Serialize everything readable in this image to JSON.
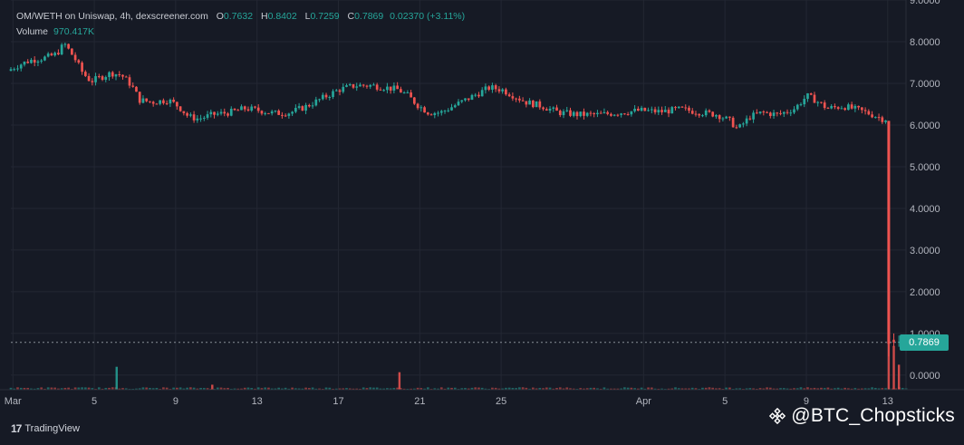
{
  "header": {
    "pair": "OM/WETH on Uniswap, 4h, dexscreener.com",
    "open_label": "O",
    "open": "0.7632",
    "high_label": "H",
    "high": "0.8402",
    "low_label": "L",
    "low": "0.7259",
    "close_label": "C",
    "close": "0.7869",
    "change": "0.02370 (+3.11%)",
    "volume_label": "Volume",
    "volume": "970.417K"
  },
  "last_price": "0.7869",
  "brand": "TradingView",
  "watermark": "@BTC_Chopsticks",
  "colors": {
    "background": "#161a25",
    "up": "#26a69a",
    "down": "#ef5350",
    "grid": "#232733",
    "axis_text": "#b2b5be"
  },
  "chart_data": {
    "type": "candlestick",
    "timeframe": "4h",
    "y_ticks": [
      "0.0000",
      "1.0000",
      "2.0000",
      "3.0000",
      "4.0000",
      "5.0000",
      "6.0000",
      "7.0000",
      "8.0000",
      "9.0000"
    ],
    "ylim": [
      -0.35,
      9.0
    ],
    "x_ticks": [
      {
        "label": "Mar",
        "day": 1
      },
      {
        "label": "5",
        "day": 5
      },
      {
        "label": "9",
        "day": 9
      },
      {
        "label": "13",
        "day": 13
      },
      {
        "label": "17",
        "day": 17
      },
      {
        "label": "21",
        "day": 21
      },
      {
        "label": "25",
        "day": 25
      },
      {
        "label": "Apr",
        "day": 32
      },
      {
        "label": "5",
        "day": 36
      },
      {
        "label": "9",
        "day": 40
      },
      {
        "label": "13",
        "day": 44
      }
    ],
    "x_day_range": [
      0.9,
      44.9
    ],
    "price_path": [
      [
        0.9,
        7.3
      ],
      [
        1.5,
        7.45
      ],
      [
        2.0,
        7.55
      ],
      [
        2.8,
        7.62
      ],
      [
        3.3,
        7.7
      ],
      [
        3.7,
        7.95
      ],
      [
        4.2,
        7.6
      ],
      [
        4.6,
        7.25
      ],
      [
        5.0,
        7.05
      ],
      [
        5.5,
        7.15
      ],
      [
        6.0,
        7.25
      ],
      [
        6.5,
        7.2
      ],
      [
        7.0,
        6.95
      ],
      [
        7.4,
        6.6
      ],
      [
        8.0,
        6.55
      ],
      [
        8.8,
        6.6
      ],
      [
        9.3,
        6.45
      ],
      [
        9.8,
        6.2
      ],
      [
        10.3,
        6.15
      ],
      [
        11.0,
        6.25
      ],
      [
        11.8,
        6.3
      ],
      [
        12.6,
        6.4
      ],
      [
        13.3,
        6.35
      ],
      [
        14.0,
        6.28
      ],
      [
        14.8,
        6.3
      ],
      [
        15.6,
        6.45
      ],
      [
        16.4,
        6.65
      ],
      [
        17.2,
        6.85
      ],
      [
        18.0,
        6.95
      ],
      [
        18.8,
        6.95
      ],
      [
        19.5,
        6.9
      ],
      [
        20.1,
        6.85
      ],
      [
        20.6,
        6.7
      ],
      [
        21.0,
        6.5
      ],
      [
        21.6,
        6.3
      ],
      [
        22.2,
        6.3
      ],
      [
        22.8,
        6.45
      ],
      [
        23.4,
        6.6
      ],
      [
        24.0,
        6.75
      ],
      [
        24.6,
        6.9
      ],
      [
        25.2,
        6.85
      ],
      [
        25.8,
        6.7
      ],
      [
        26.4,
        6.55
      ],
      [
        27.2,
        6.45
      ],
      [
        28.0,
        6.3
      ],
      [
        29.0,
        6.25
      ],
      [
        30.0,
        6.25
      ],
      [
        31.0,
        6.3
      ],
      [
        32.0,
        6.35
      ],
      [
        33.0,
        6.32
      ],
      [
        34.0,
        6.38
      ],
      [
        35.0,
        6.3
      ],
      [
        35.8,
        6.25
      ],
      [
        36.4,
        6.1
      ],
      [
        36.8,
        5.9
      ],
      [
        37.4,
        6.2
      ],
      [
        38.0,
        6.3
      ],
      [
        38.8,
        6.25
      ],
      [
        39.6,
        6.4
      ],
      [
        40.2,
        6.7
      ],
      [
        40.6,
        6.6
      ],
      [
        41.2,
        6.4
      ],
      [
        42.0,
        6.45
      ],
      [
        42.8,
        6.35
      ],
      [
        43.4,
        6.25
      ],
      [
        43.9,
        6.15
      ]
    ],
    "crash": {
      "day": 44.05,
      "open": 6.1,
      "low": 0.45,
      "close": 0.75
    },
    "volume_spikes": [
      {
        "day": 6.1,
        "v": 0.55,
        "dir": "up"
      },
      {
        "day": 10.8,
        "v": 0.12,
        "dir": "down"
      },
      {
        "day": 20.0,
        "v": 0.42,
        "dir": "down"
      },
      {
        "day": 44.05,
        "v": 2.35,
        "dir": "down"
      },
      {
        "day": 44.3,
        "v": 1.05,
        "dir": "down"
      },
      {
        "day": 44.55,
        "v": 0.6,
        "dir": "down"
      }
    ]
  }
}
